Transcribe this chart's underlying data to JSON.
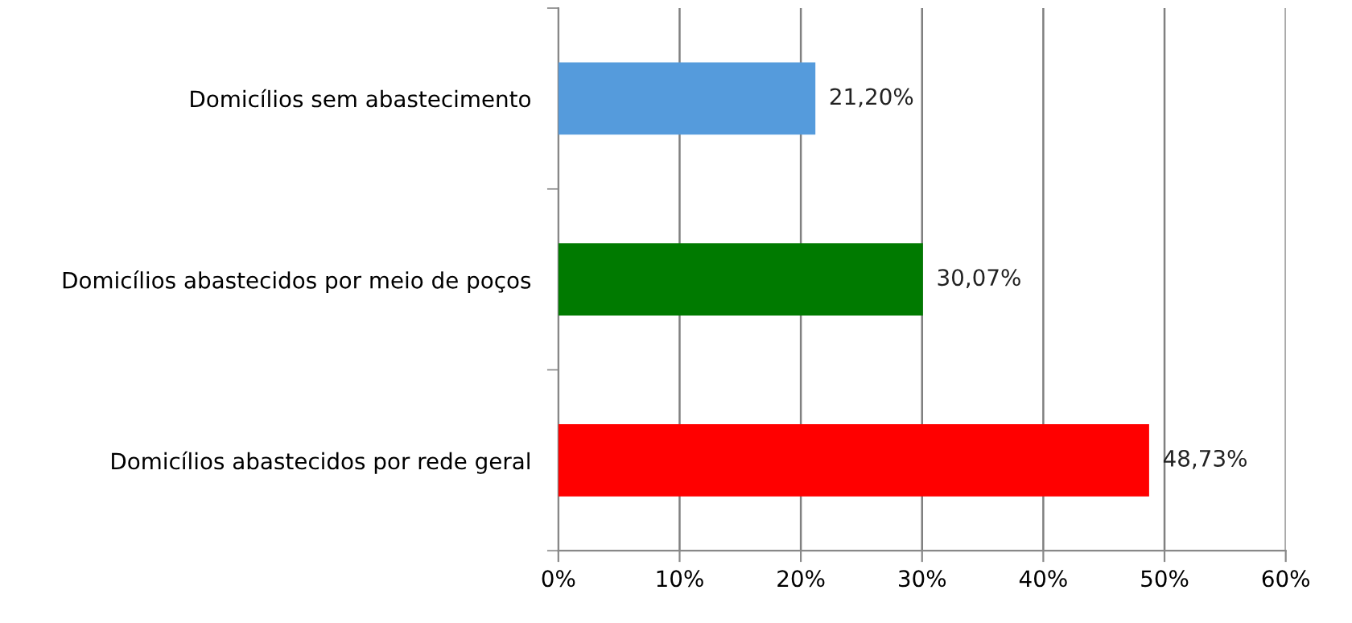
{
  "chart_data": {
    "type": "bar",
    "orientation": "horizontal",
    "categories": [
      "Domicílios sem abastecimento",
      "Domicílios abastecidos por meio de poços",
      "Domicílios abastecidos por rede geral"
    ],
    "values": [
      21.2,
      30.07,
      48.73
    ],
    "colors": [
      "#559bdc",
      "#007a00",
      "#ff0000"
    ],
    "value_labels": [
      "21,20%",
      "30,07%",
      "48,73%"
    ],
    "xlim": [
      0,
      60
    ],
    "xticks": [
      {
        "value": 0,
        "label": "0%"
      },
      {
        "value": 10,
        "label": "10%"
      },
      {
        "value": 20,
        "label": "20%"
      },
      {
        "value": 30,
        "label": "30%"
      },
      {
        "value": 40,
        "label": "40%"
      },
      {
        "value": 50,
        "label": "50%"
      },
      {
        "value": 60,
        "label": "60%"
      }
    ],
    "grid": "x",
    "legend": false
  }
}
